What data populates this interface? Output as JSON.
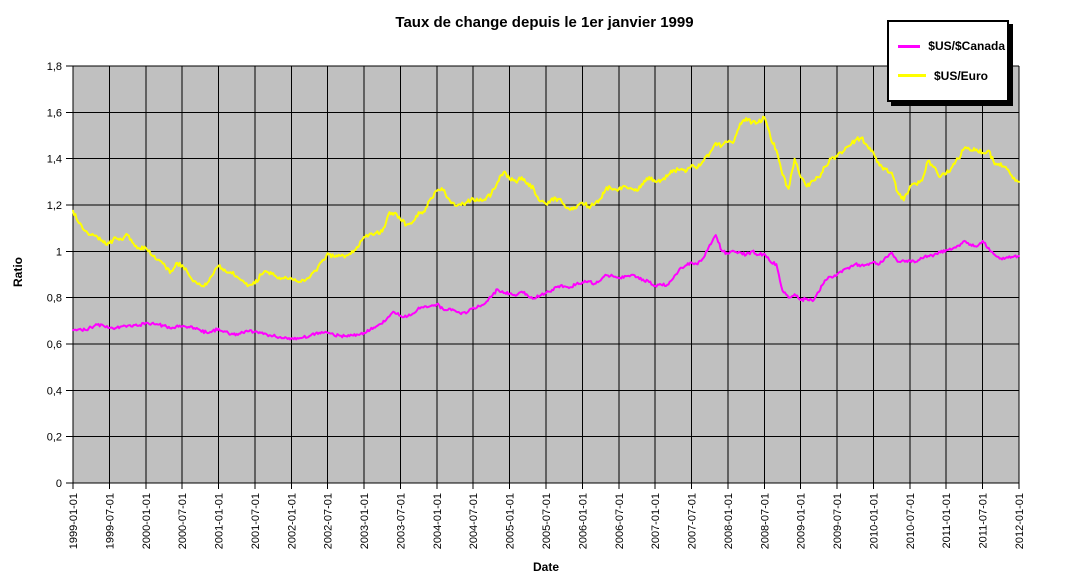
{
  "chart_data": {
    "type": "line",
    "title": "Taux de change depuis le 1er janvier 1999",
    "xlabel": "Date",
    "ylabel": "Ratio",
    "ylim": [
      0,
      1.8
    ],
    "y_tick_step": 0.2,
    "y_tick_labels": [
      "0",
      "0,2",
      "0,4",
      "0,6",
      "0,8",
      "1",
      "1,2",
      "1,4",
      "1,6",
      "1,8"
    ],
    "x_tick_labels": [
      "1999-01-01",
      "1999-07-01",
      "2000-01-01",
      "2000-07-01",
      "2001-01-01",
      "2001-07-01",
      "2002-01-01",
      "2002-07-01",
      "2003-01-01",
      "2003-07-01",
      "2004-01-01",
      "2004-07-01",
      "2005-01-01",
      "2005-07-01",
      "2006-01-01",
      "2006-07-01",
      "2007-01-01",
      "2007-07-01",
      "2008-01-01",
      "2008-07-01",
      "2009-01-01",
      "2009-07-01",
      "2010-01-01",
      "2010-07-01",
      "2011-01-01",
      "2011-07-01",
      "2012-01-01"
    ],
    "x_start": "1999-01",
    "x_end": "2012-01",
    "x_resolution": "monthly",
    "grid": true,
    "plot_bg": "#C0C0C0",
    "grid_color": "#000000",
    "legend_position": "top-right",
    "series": [
      {
        "name": "$US/$Canada",
        "color": "#FF00FF",
        "values": [
          0.66,
          0.664,
          0.661,
          0.672,
          0.683,
          0.68,
          0.67,
          0.668,
          0.676,
          0.679,
          0.682,
          0.681,
          0.691,
          0.689,
          0.684,
          0.679,
          0.668,
          0.676,
          0.676,
          0.674,
          0.669,
          0.659,
          0.65,
          0.656,
          0.666,
          0.655,
          0.641,
          0.644,
          0.649,
          0.655,
          0.653,
          0.648,
          0.64,
          0.635,
          0.629,
          0.63,
          0.624,
          0.626,
          0.629,
          0.635,
          0.646,
          0.652,
          0.648,
          0.639,
          0.636,
          0.634,
          0.638,
          0.64,
          0.648,
          0.661,
          0.676,
          0.688,
          0.717,
          0.737,
          0.722,
          0.716,
          0.731,
          0.757,
          0.763,
          0.764,
          0.772,
          0.751,
          0.753,
          0.744,
          0.729,
          0.736,
          0.757,
          0.763,
          0.776,
          0.803,
          0.836,
          0.82,
          0.817,
          0.808,
          0.826,
          0.809,
          0.797,
          0.808,
          0.82,
          0.834,
          0.849,
          0.849,
          0.845,
          0.859,
          0.866,
          0.871,
          0.86,
          0.874,
          0.897,
          0.894,
          0.884,
          0.894,
          0.897,
          0.888,
          0.879,
          0.867,
          0.851,
          0.856,
          0.856,
          0.884,
          0.923,
          0.939,
          0.952,
          0.944,
          0.973,
          1.028,
          1.07,
          1.002,
          0.99,
          1.0,
          0.995,
          0.985,
          1.0,
          0.985,
          0.99,
          0.955,
          0.945,
          0.83,
          0.8,
          0.815,
          0.79,
          0.795,
          0.785,
          0.825,
          0.875,
          0.89,
          0.9,
          0.92,
          0.925,
          0.945,
          0.94,
          0.945,
          0.955,
          0.945,
          0.975,
          0.995,
          0.955,
          0.96,
          0.96,
          0.955,
          0.97,
          0.98,
          0.985,
          0.995,
          1.005,
          1.01,
          1.025,
          1.045,
          1.03,
          1.02,
          1.045,
          1.015,
          0.985,
          0.97,
          0.975,
          0.975,
          0.98
        ]
      },
      {
        "name": "$US/Euro",
        "color": "#FFFF00",
        "values": [
          1.175,
          1.121,
          1.088,
          1.07,
          1.063,
          1.038,
          1.035,
          1.06,
          1.05,
          1.071,
          1.034,
          1.011,
          1.014,
          0.983,
          0.964,
          0.947,
          0.906,
          0.949,
          0.94,
          0.904,
          0.872,
          0.855,
          0.856,
          0.897,
          0.938,
          0.922,
          0.91,
          0.892,
          0.874,
          0.853,
          0.861,
          0.9,
          0.911,
          0.906,
          0.888,
          0.89,
          0.883,
          0.87,
          0.876,
          0.886,
          0.917,
          0.955,
          0.992,
          0.978,
          0.981,
          0.981,
          1.001,
          1.018,
          1.062,
          1.077,
          1.081,
          1.085,
          1.158,
          1.166,
          1.137,
          1.114,
          1.126,
          1.169,
          1.171,
          1.229,
          1.261,
          1.264,
          1.226,
          1.198,
          1.2,
          1.214,
          1.227,
          1.218,
          1.222,
          1.249,
          1.299,
          1.341,
          1.312,
          1.301,
          1.32,
          1.294,
          1.269,
          1.216,
          1.204,
          1.229,
          1.226,
          1.202,
          1.179,
          1.186,
          1.21,
          1.194,
          1.202,
          1.227,
          1.277,
          1.266,
          1.268,
          1.281,
          1.273,
          1.261,
          1.289,
          1.321,
          1.3,
          1.308,
          1.324,
          1.351,
          1.351,
          1.342,
          1.372,
          1.362,
          1.391,
          1.423,
          1.468,
          1.456,
          1.472,
          1.475,
          1.552,
          1.575,
          1.556,
          1.556,
          1.58,
          1.495,
          1.437,
          1.33,
          1.27,
          1.4,
          1.32,
          1.28,
          1.305,
          1.32,
          1.365,
          1.4,
          1.41,
          1.43,
          1.455,
          1.48,
          1.49,
          1.455,
          1.425,
          1.37,
          1.355,
          1.34,
          1.255,
          1.22,
          1.28,
          1.29,
          1.305,
          1.39,
          1.365,
          1.32,
          1.335,
          1.365,
          1.4,
          1.445,
          1.435,
          1.44,
          1.425,
          1.435,
          1.375,
          1.38,
          1.355,
          1.315,
          1.3
        ]
      }
    ]
  }
}
